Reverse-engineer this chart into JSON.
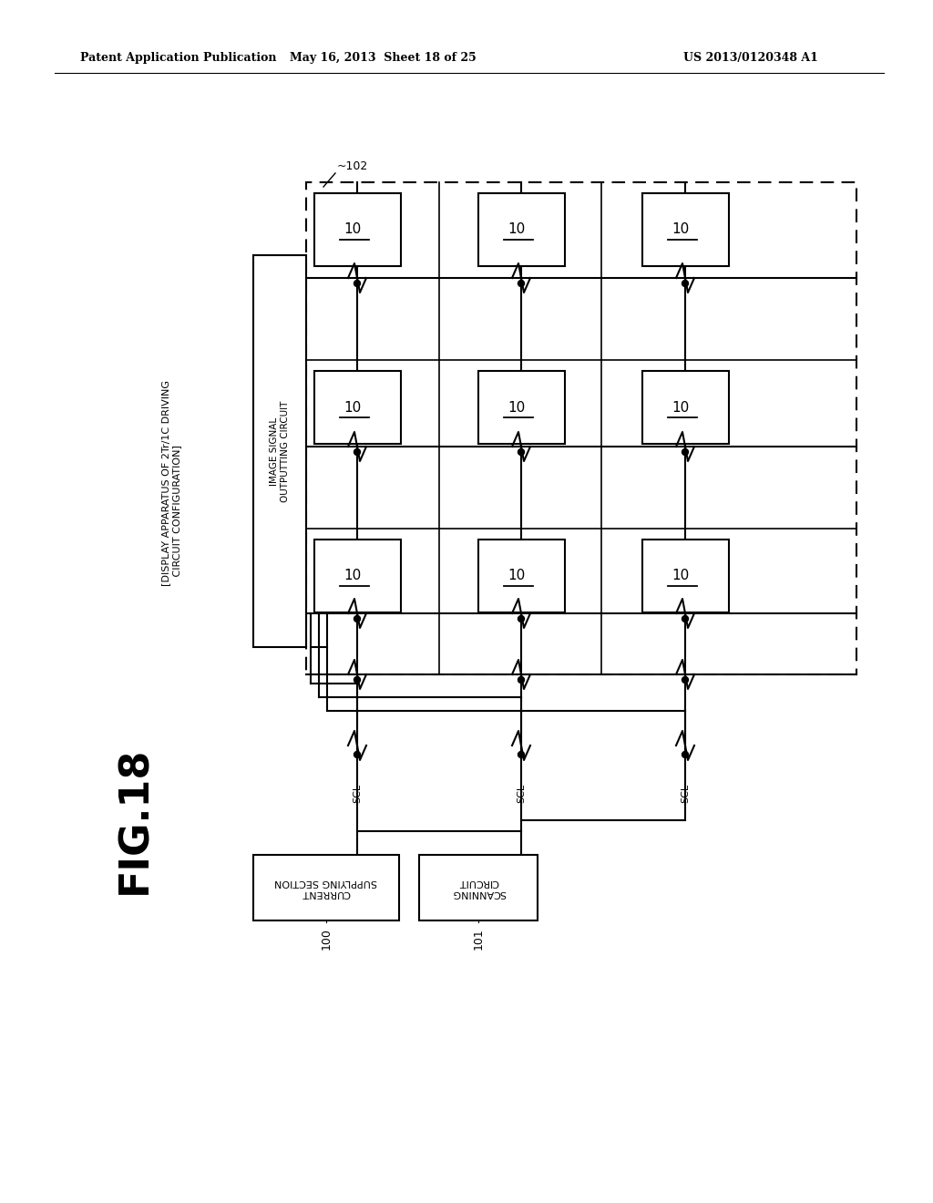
{
  "bg_color": "#ffffff",
  "header_left": "Patent Application Publication",
  "header_mid": "May 16, 2013  Sheet 18 of 25",
  "header_right": "US 2013/0120348 A1",
  "fig_label": "FIG.18",
  "fig_sublabel": "[DISPLAY APPARATUS OF 2Tr/1C DRIVING\n   CIRCUIT CONFIGURATION]",
  "label_102": "~102",
  "label_100": "100",
  "label_101": "101",
  "image_signal_text": "IMAGE SIGNAL\nOUTPUTTING CIRCUIT",
  "current_supply_text": "CURRENT\nSUPPLYING SECTION",
  "scanning_text": "SCANNING\nCIRCUIT",
  "scl": "SCL",
  "cell_text": "10"
}
